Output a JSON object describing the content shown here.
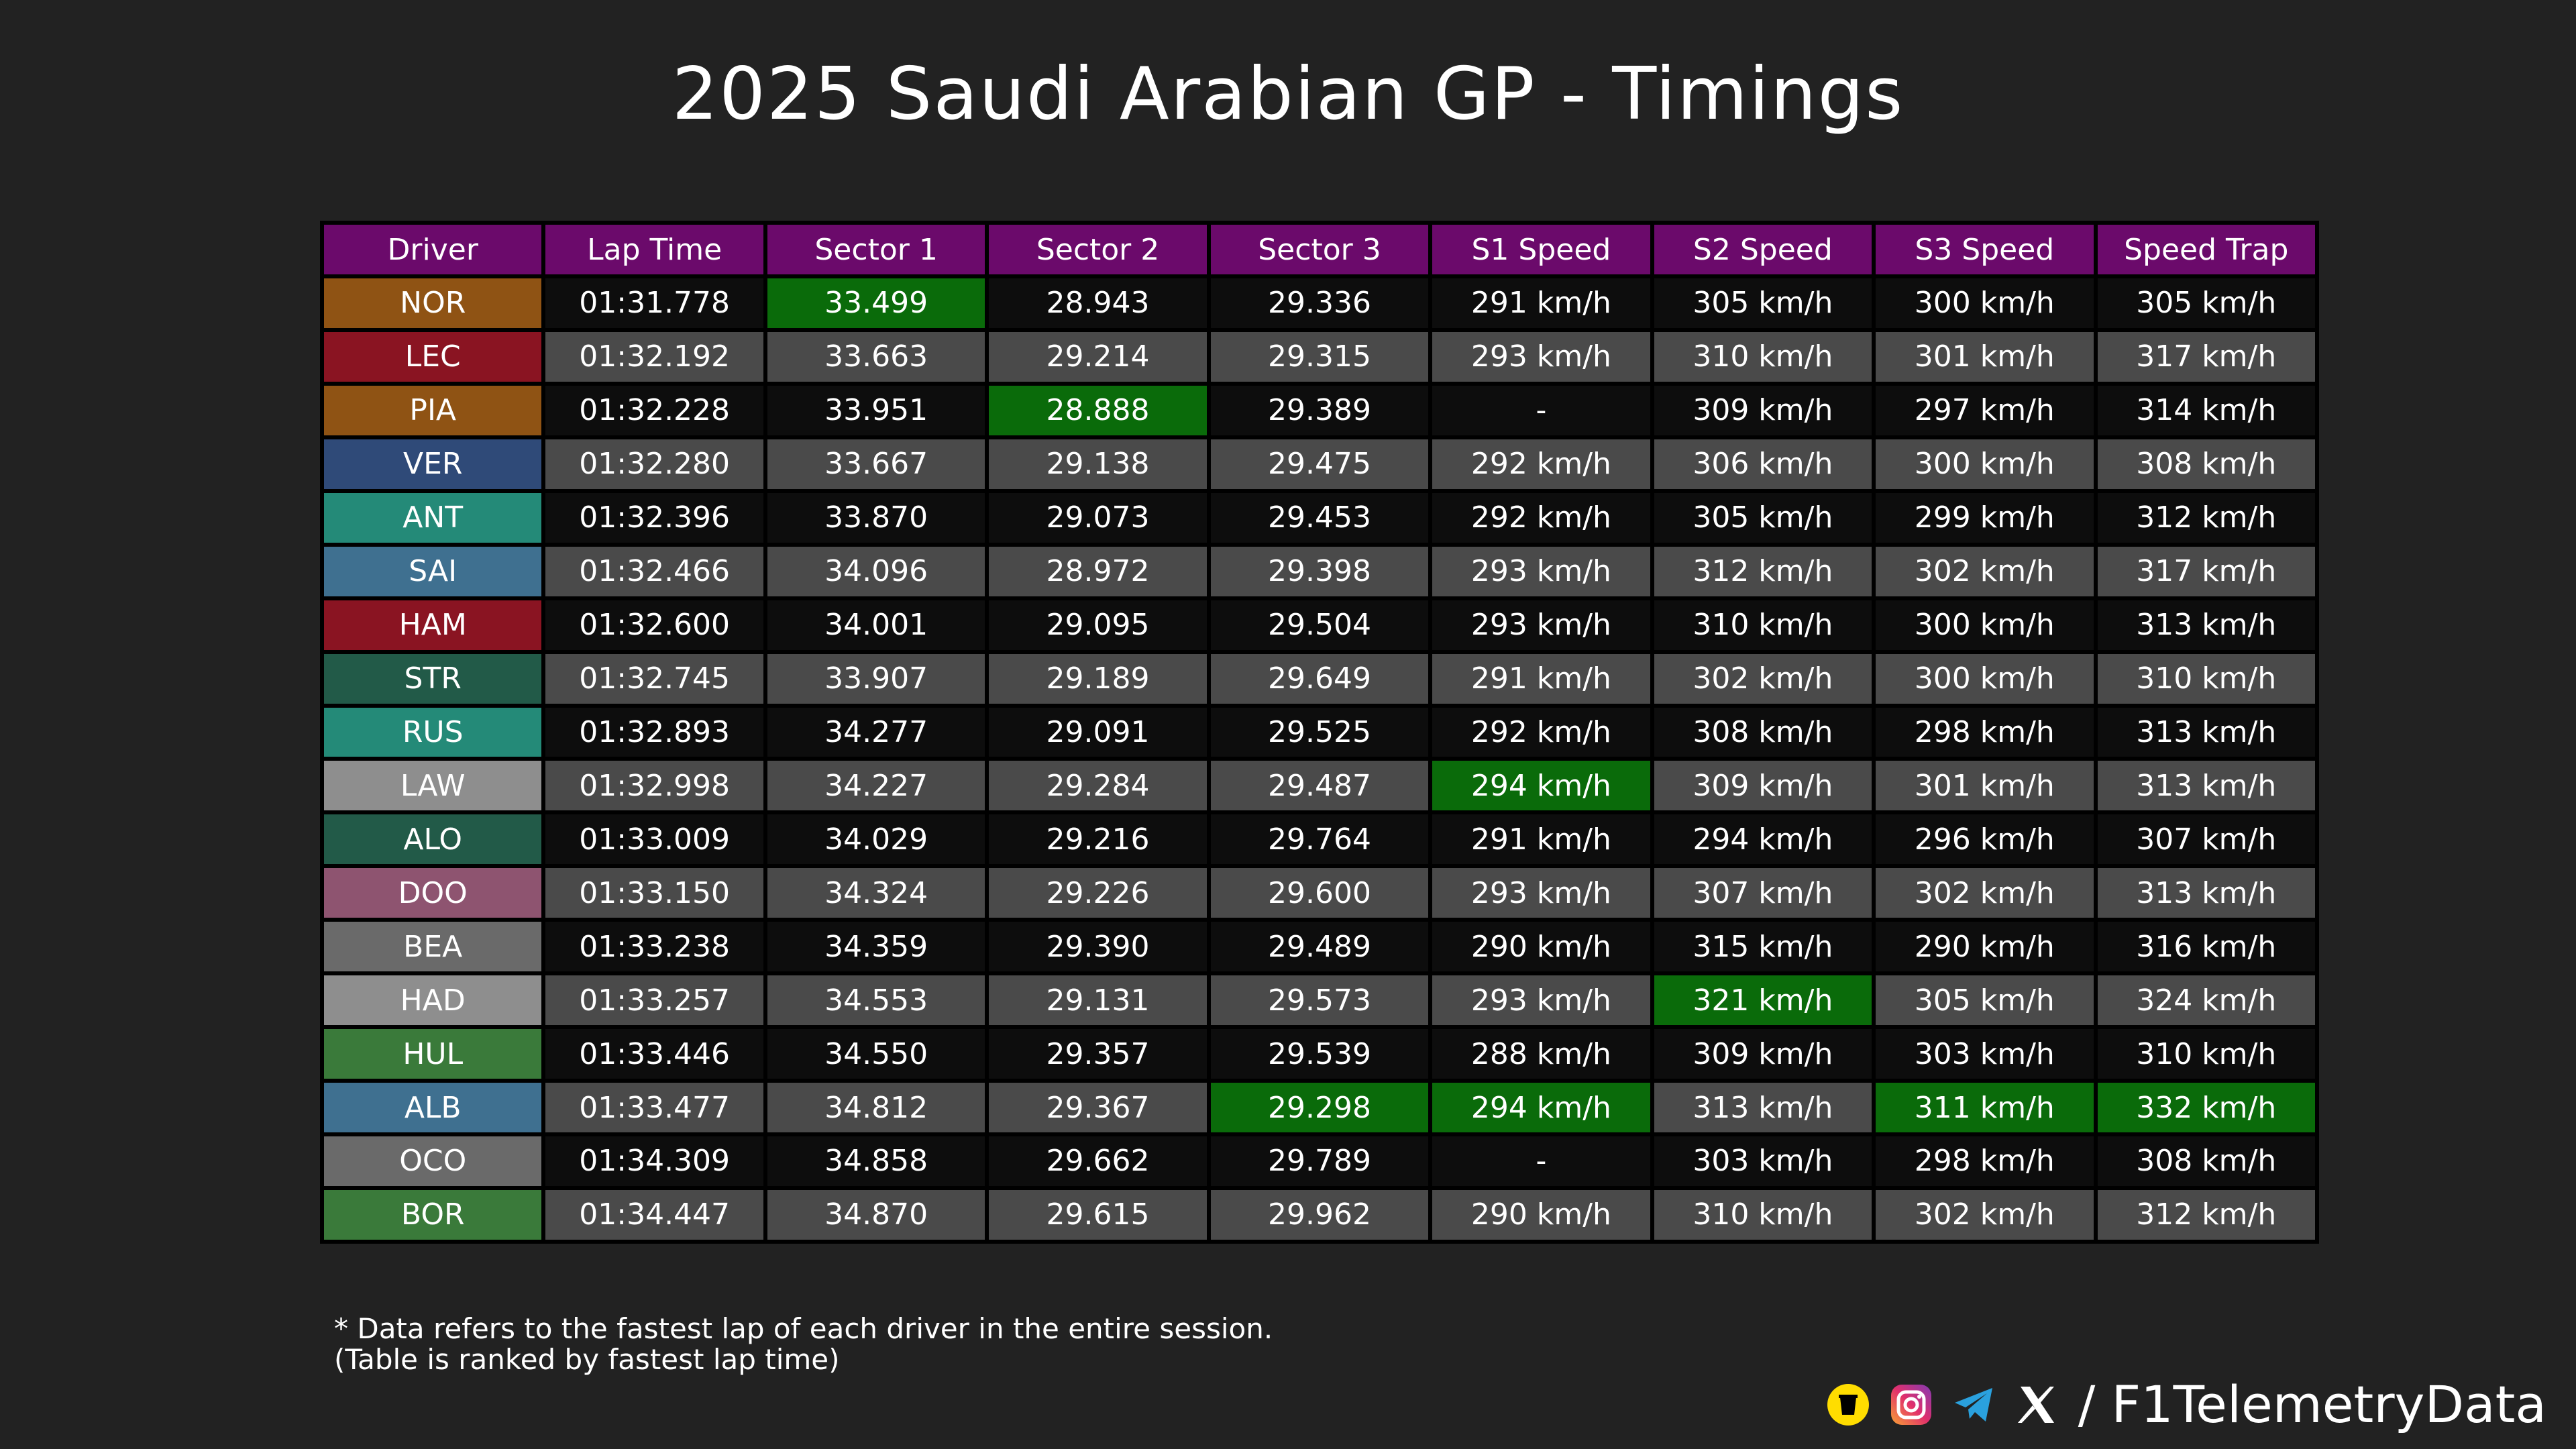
{
  "title": "2025 Saudi Arabian GP - Timings",
  "watermark": "@F1TelemetryData",
  "note_line1": "* Data refers to the fastest lap of each driver in the entire session.",
  "note_line2": "(Table is ranked by fastest lap time)",
  "footer_text": "/ F1TelemetryData",
  "colors": {
    "header": "#6b0a6b",
    "best": "#0a6b0a",
    "row_dark": "#0d0d0d",
    "row_light": "#4a4a4a"
  },
  "chart_data": {
    "type": "table",
    "columns": [
      "Driver",
      "Lap Time",
      "Sector 1",
      "Sector 2",
      "Sector 3",
      "S1 Speed",
      "S2 Speed",
      "S3 Speed",
      "Speed Trap"
    ],
    "rows": [
      {
        "driver": "NOR",
        "color": "#8f5314",
        "cells": [
          "01:31.778",
          "33.499",
          "28.943",
          "29.336",
          "291 km/h",
          "305 km/h",
          "300 km/h",
          "305 km/h"
        ],
        "best": [
          1
        ]
      },
      {
        "driver": "LEC",
        "color": "#8a1422",
        "cells": [
          "01:32.192",
          "33.663",
          "29.214",
          "29.315",
          "293 km/h",
          "310 km/h",
          "301 km/h",
          "317 km/h"
        ],
        "best": []
      },
      {
        "driver": "PIA",
        "color": "#8f5314",
        "cells": [
          "01:32.228",
          "33.951",
          "28.888",
          "29.389",
          "-",
          "309 km/h",
          "297 km/h",
          "314 km/h"
        ],
        "best": [
          2
        ]
      },
      {
        "driver": "VER",
        "color": "#2f4a78",
        "cells": [
          "01:32.280",
          "33.667",
          "29.138",
          "29.475",
          "292 km/h",
          "306 km/h",
          "300 km/h",
          "308 km/h"
        ],
        "best": []
      },
      {
        "driver": "ANT",
        "color": "#248a78",
        "cells": [
          "01:32.396",
          "33.870",
          "29.073",
          "29.453",
          "292 km/h",
          "305 km/h",
          "299 km/h",
          "312 km/h"
        ],
        "best": []
      },
      {
        "driver": "SAI",
        "color": "#3f7090",
        "cells": [
          "01:32.466",
          "34.096",
          "28.972",
          "29.398",
          "293 km/h",
          "312 km/h",
          "302 km/h",
          "317 km/h"
        ],
        "best": []
      },
      {
        "driver": "HAM",
        "color": "#8a1422",
        "cells": [
          "01:32.600",
          "34.001",
          "29.095",
          "29.504",
          "293 km/h",
          "310 km/h",
          "300 km/h",
          "313 km/h"
        ],
        "best": []
      },
      {
        "driver": "STR",
        "color": "#225a48",
        "cells": [
          "01:32.745",
          "33.907",
          "29.189",
          "29.649",
          "291 km/h",
          "302 km/h",
          "300 km/h",
          "310 km/h"
        ],
        "best": []
      },
      {
        "driver": "RUS",
        "color": "#248a78",
        "cells": [
          "01:32.893",
          "34.277",
          "29.091",
          "29.525",
          "292 km/h",
          "308 km/h",
          "298 km/h",
          "313 km/h"
        ],
        "best": []
      },
      {
        "driver": "LAW",
        "color": "#8e8e8e",
        "cells": [
          "01:32.998",
          "34.227",
          "29.284",
          "29.487",
          "294 km/h",
          "309 km/h",
          "301 km/h",
          "313 km/h"
        ],
        "best": [
          4
        ]
      },
      {
        "driver": "ALO",
        "color": "#225a48",
        "cells": [
          "01:33.009",
          "34.029",
          "29.216",
          "29.764",
          "291 km/h",
          "294 km/h",
          "296 km/h",
          "307 km/h"
        ],
        "best": []
      },
      {
        "driver": "DOO",
        "color": "#8e5470",
        "cells": [
          "01:33.150",
          "34.324",
          "29.226",
          "29.600",
          "293 km/h",
          "307 km/h",
          "302 km/h",
          "313 km/h"
        ],
        "best": []
      },
      {
        "driver": "BEA",
        "color": "#6a6a6a",
        "cells": [
          "01:33.238",
          "34.359",
          "29.390",
          "29.489",
          "290 km/h",
          "315 km/h",
          "290 km/h",
          "316 km/h"
        ],
        "best": []
      },
      {
        "driver": "HAD",
        "color": "#8e8e8e",
        "cells": [
          "01:33.257",
          "34.553",
          "29.131",
          "29.573",
          "293 km/h",
          "321 km/h",
          "305 km/h",
          "324 km/h"
        ],
        "best": [
          5
        ]
      },
      {
        "driver": "HUL",
        "color": "#3a7a3a",
        "cells": [
          "01:33.446",
          "34.550",
          "29.357",
          "29.539",
          "288 km/h",
          "309 km/h",
          "303 km/h",
          "310 km/h"
        ],
        "best": []
      },
      {
        "driver": "ALB",
        "color": "#3f7090",
        "cells": [
          "01:33.477",
          "34.812",
          "29.367",
          "29.298",
          "294 km/h",
          "313 km/h",
          "311 km/h",
          "332 km/h"
        ],
        "best": [
          3,
          4,
          6,
          7
        ]
      },
      {
        "driver": "OCO",
        "color": "#6a6a6a",
        "cells": [
          "01:34.309",
          "34.858",
          "29.662",
          "29.789",
          "-",
          "303 km/h",
          "298 km/h",
          "308 km/h"
        ],
        "best": []
      },
      {
        "driver": "BOR",
        "color": "#3a7a3a",
        "cells": [
          "01:34.447",
          "34.870",
          "29.615",
          "29.962",
          "290 km/h",
          "310 km/h",
          "302 km/h",
          "312 km/h"
        ],
        "best": []
      }
    ]
  }
}
